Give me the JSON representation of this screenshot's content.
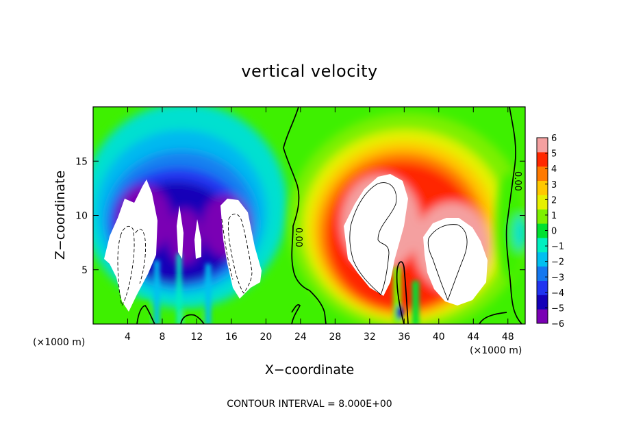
{
  "chart_data": {
    "type": "heatmap",
    "title": "vertical velocity",
    "xlabel": "X−coordinate",
    "ylabel": "Z−coordinate",
    "x_unit_left": "(×1000 m)",
    "x_unit_right": "(×1000 m)",
    "xlim": [
      0,
      50
    ],
    "ylim": [
      0,
      20
    ],
    "xticks": [
      4,
      8,
      12,
      16,
      20,
      24,
      28,
      32,
      36,
      40,
      44,
      48
    ],
    "yticks": [
      5,
      10,
      15
    ],
    "footer": "CONTOUR INTERVAL = 8.000E+00",
    "colorbar": {
      "ticks": [
        "6",
        "5",
        "4",
        "3",
        "2",
        "1",
        "0",
        "−1",
        "−2",
        "−3",
        "−4",
        "−5",
        "−6"
      ],
      "range": [
        -6,
        6
      ],
      "colors": [
        "#7a00b4",
        "#1400b8",
        "#2034f0",
        "#1478f0",
        "#00c0f0",
        "#00f0c0",
        "#00e030",
        "#7df000",
        "#e6f000",
        "#ffc800",
        "#ff7a00",
        "#ff2800",
        "#f4a0a0"
      ]
    },
    "contour_labels": [
      "0.00",
      "0.00"
    ],
    "features": [
      {
        "kind": "downdraft",
        "x": 5.5,
        "z": 7.5,
        "value": -6
      },
      {
        "kind": "downdraft",
        "x": 17,
        "z": 7.5,
        "value": -6
      },
      {
        "kind": "updraft",
        "x": 33,
        "z": 9.5,
        "value": 6
      },
      {
        "kind": "updraft",
        "x": 41.5,
        "z": 7,
        "value": 6
      }
    ]
  }
}
